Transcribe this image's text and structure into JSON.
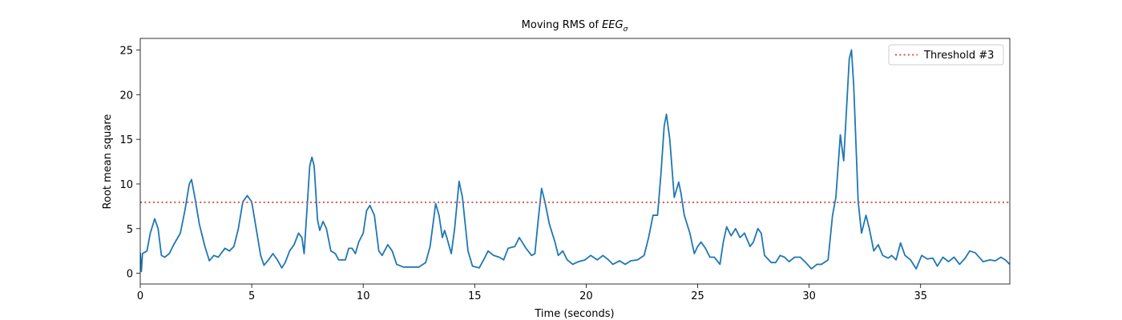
{
  "chart_data": {
    "type": "line",
    "title_parts": [
      "Moving RMS of ",
      "EEG",
      "σ"
    ],
    "xlabel": "Time (seconds)",
    "ylabel": "Root mean square",
    "xlim": [
      0,
      39
    ],
    "ylim": [
      -1.2,
      26.3
    ],
    "xticks": [
      0,
      5,
      10,
      15,
      20,
      25,
      30,
      35
    ],
    "yticks": [
      0,
      5,
      10,
      15,
      20,
      25
    ],
    "legend": "upper right",
    "threshold": {
      "name": "Threshold #3",
      "value": 7.95,
      "color": "#d9534f"
    },
    "x": [
      0,
      0.05,
      0.1,
      0.3,
      0.45,
      0.65,
      0.8,
      0.95,
      1.1,
      1.3,
      1.5,
      1.8,
      2.0,
      2.2,
      2.3,
      2.45,
      2.65,
      2.9,
      3.1,
      3.3,
      3.5,
      3.8,
      4.0,
      4.2,
      4.4,
      4.6,
      4.8,
      5.0,
      5.2,
      5.4,
      5.55,
      5.75,
      5.95,
      6.15,
      6.35,
      6.5,
      6.7,
      6.9,
      7.1,
      7.25,
      7.35,
      7.5,
      7.6,
      7.7,
      7.8,
      7.95,
      8.05,
      8.2,
      8.35,
      8.55,
      8.75,
      8.9,
      9.2,
      9.35,
      9.5,
      9.65,
      9.8,
      10.0,
      10.15,
      10.3,
      10.5,
      10.7,
      10.85,
      11.1,
      11.3,
      11.5,
      11.8,
      12.5,
      12.8,
      13.0,
      13.25,
      13.4,
      13.55,
      13.65,
      13.75,
      13.95,
      14.1,
      14.3,
      14.45,
      14.7,
      14.9,
      15.2,
      15.4,
      15.6,
      15.85,
      16.1,
      16.3,
      16.5,
      16.8,
      17.0,
      17.3,
      17.55,
      17.7,
      17.85,
      18.0,
      18.15,
      18.35,
      18.6,
      18.75,
      18.95,
      19.15,
      19.4,
      19.65,
      19.95,
      20.2,
      20.5,
      20.75,
      21.0,
      21.2,
      21.5,
      21.75,
      22.0,
      22.3,
      22.6,
      22.8,
      23.0,
      23.2,
      23.35,
      23.5,
      23.6,
      23.75,
      23.95,
      24.15,
      24.25,
      24.4,
      24.65,
      24.85,
      25.0,
      25.15,
      25.35,
      25.55,
      25.75,
      26.0,
      26.15,
      26.3,
      26.5,
      26.7,
      26.9,
      27.1,
      27.35,
      27.5,
      27.7,
      27.85,
      28.0,
      28.3,
      28.5,
      28.7,
      28.9,
      29.1,
      29.35,
      29.6,
      29.85,
      30.1,
      30.35,
      30.55,
      30.85,
      31.05,
      31.2,
      31.4,
      31.55,
      31.8,
      31.9,
      32.0,
      32.2,
      32.35,
      32.55,
      32.7,
      32.9,
      33.1,
      33.3,
      33.55,
      33.7,
      33.9,
      34.1,
      34.3,
      34.55,
      34.8,
      35.05,
      35.3,
      35.55,
      35.75,
      36.0,
      36.25,
      36.5,
      36.75,
      37.0,
      37.2,
      37.45,
      37.8,
      38.1,
      38.35,
      38.6,
      38.8,
      39.0
    ],
    "series": [
      {
        "color": "#1f77b4",
        "values": [
          2.3,
          0.2,
          2.2,
          2.5,
          4.5,
          6.1,
          5.0,
          2.0,
          1.8,
          2.2,
          3.2,
          4.5,
          7.0,
          10.0,
          10.5,
          8.5,
          5.5,
          3.0,
          1.4,
          2.0,
          1.8,
          2.8,
          2.5,
          3.0,
          5.0,
          8.0,
          8.7,
          8.0,
          5.0,
          2.0,
          0.9,
          1.5,
          2.2,
          1.5,
          0.6,
          1.2,
          2.5,
          3.2,
          4.5,
          4.0,
          2.2,
          8.0,
          12.0,
          13.0,
          12.0,
          6.0,
          4.8,
          5.8,
          5.0,
          2.5,
          2.2,
          1.5,
          1.5,
          2.8,
          2.8,
          2.2,
          3.5,
          4.5,
          7.0,
          7.6,
          6.5,
          2.5,
          2.0,
          3.2,
          2.5,
          1.0,
          0.7,
          0.7,
          1.2,
          3.0,
          7.8,
          6.5,
          4.0,
          4.8,
          4.0,
          2.2,
          5.0,
          10.3,
          8.5,
          2.5,
          0.8,
          0.6,
          1.5,
          2.5,
          2.0,
          1.8,
          1.5,
          2.8,
          3.0,
          4.0,
          2.8,
          2.0,
          2.2,
          6.0,
          9.5,
          8.0,
          5.5,
          3.5,
          2.0,
          2.5,
          1.5,
          1.0,
          1.3,
          1.5,
          2.0,
          1.5,
          2.0,
          1.5,
          1.0,
          1.4,
          1.0,
          1.4,
          1.5,
          2.0,
          4.0,
          6.5,
          6.5,
          11.0,
          16.5,
          17.8,
          15.0,
          8.5,
          10.2,
          9.0,
          6.5,
          4.5,
          2.2,
          3.0,
          3.5,
          2.8,
          1.8,
          1.8,
          1.0,
          3.5,
          5.2,
          4.2,
          5.0,
          4.0,
          4.5,
          3.0,
          3.5,
          5.0,
          4.5,
          2.0,
          1.2,
          1.2,
          2.0,
          1.8,
          1.3,
          1.8,
          1.8,
          1.2,
          0.5,
          1.0,
          1.0,
          1.5,
          6.5,
          8.5,
          15.5,
          12.6,
          24.0,
          25.0,
          21.0,
          8.0,
          4.5,
          6.5,
          5.0,
          2.5,
          3.2,
          2.0,
          1.7,
          2.0,
          1.5,
          3.4,
          2.0,
          1.5,
          0.5,
          2.0,
          1.6,
          1.7,
          0.8,
          1.8,
          1.3,
          1.8,
          1.0,
          1.7,
          2.5,
          2.3,
          1.3,
          1.5,
          1.4,
          1.8,
          1.5,
          1.0
        ]
      }
    ]
  }
}
